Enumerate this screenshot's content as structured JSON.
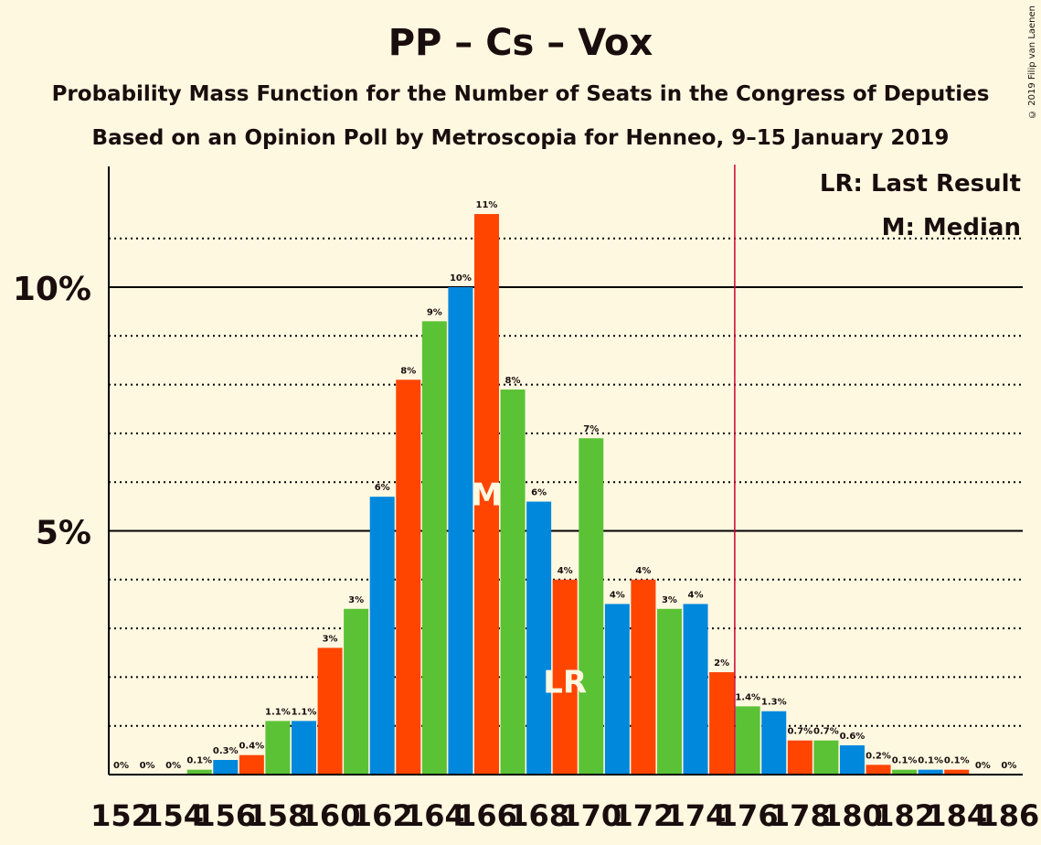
{
  "title": "PP – Cs – Vox",
  "subtitle1": "Probability Mass Function for the Number of Seats in the Congress of Deputies",
  "subtitle2": "Based on an Opinion Poll by Metroscopia for Henneo, 9–15 January 2019",
  "copyright": "© 2019 Filip van Laenen",
  "legend": {
    "lr": "LR: Last Result",
    "median": "M: Median"
  },
  "colors": {
    "background": "#fff8e1",
    "pp": "#0088dd",
    "cs": "#ff4500",
    "vox": "#5bc236",
    "lastResultLine": "#cc0033",
    "text": "#1a0d0d"
  },
  "chart_data": {
    "type": "bar",
    "ylabel": "",
    "xlabel": "",
    "ytick_labels": [
      "5%",
      "10%"
    ],
    "ylim": [
      0,
      12.5
    ],
    "x_ticks": [
      152,
      154,
      156,
      158,
      160,
      162,
      164,
      166,
      168,
      170,
      172,
      174,
      176,
      178,
      180,
      182,
      184,
      186
    ],
    "categories": [
      152,
      153,
      154,
      155,
      156,
      157,
      158,
      159,
      160,
      161,
      162,
      163,
      164,
      165,
      166,
      167,
      168,
      169,
      170,
      171,
      172,
      173,
      174,
      175,
      176,
      177,
      178,
      179,
      180,
      181,
      182,
      183,
      184,
      185,
      186
    ],
    "values": [
      0,
      0,
      0,
      0.1,
      0.3,
      0.4,
      1.1,
      1.1,
      2.6,
      3.4,
      5.7,
      8.1,
      9.3,
      10.0,
      11.5,
      7.9,
      5.6,
      4.0,
      6.9,
      3.5,
      4.0,
      3.4,
      3.5,
      2.1,
      1.4,
      1.3,
      0.7,
      0.7,
      0.6,
      0.2,
      0.1,
      0.1,
      0.1,
      0,
      0
    ],
    "data_labels": [
      "0%",
      "0%",
      "0%",
      "0.1%",
      "0.3%",
      "0.4%",
      "1.1%",
      "1.1%",
      "3%",
      "3%",
      "6%",
      "8%",
      "9%",
      "10%",
      "11%",
      "8%",
      "6%",
      "4%",
      "7%",
      "4%",
      "4%",
      "3%",
      "4%",
      "2%",
      "1.4%",
      "1.3%",
      "0.7%",
      "0.7%",
      "0.6%",
      "0.2%",
      "0.1%",
      "0.1%",
      "0.1%",
      "0%",
      "0%"
    ],
    "bar_colors": [
      "pp",
      "cs",
      "vox",
      "vox",
      "pp",
      "cs",
      "vox",
      "pp",
      "cs",
      "vox",
      "pp",
      "cs",
      "vox",
      "pp",
      "cs",
      "vox",
      "pp",
      "cs",
      "vox",
      "pp",
      "cs",
      "vox",
      "pp",
      "cs",
      "vox",
      "pp",
      "cs",
      "vox",
      "pp",
      "cs",
      "vox",
      "pp",
      "cs",
      "vox",
      "pp"
    ],
    "median": 166,
    "median_label": "M",
    "last_result": 169,
    "last_result_label": "LR",
    "majority_line": 176
  }
}
